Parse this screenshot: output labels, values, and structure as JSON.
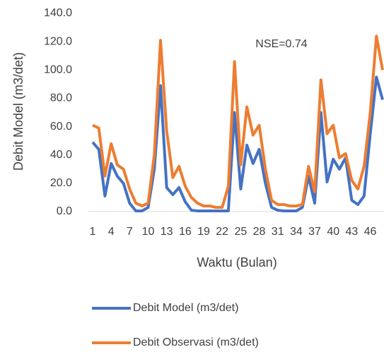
{
  "chart_data": {
    "type": "line",
    "annotation": "NSE=0.74",
    "x_label": "Waktu (Bulan)",
    "y_label": "Debit Model (m3/det)",
    "categories": [
      "1",
      null,
      null,
      "4",
      null,
      null,
      "7",
      null,
      null,
      "10",
      null,
      null,
      "13",
      null,
      null,
      "16",
      null,
      null,
      "19",
      null,
      null,
      "22",
      null,
      null,
      "25",
      null,
      null,
      "28",
      null,
      null,
      "31",
      null,
      null,
      "34",
      null,
      null,
      "37",
      null,
      null,
      "40",
      null,
      null,
      "43",
      null,
      null,
      "46",
      null,
      null
    ],
    "series": [
      {
        "name": "Debit Model (m3/det)",
        "color": "#4472c4",
        "values": [
          49,
          44,
          11,
          34,
          25,
          20,
          6,
          0.5,
          0.5,
          3,
          30,
          89,
          17,
          12,
          17,
          7,
          1,
          0.5,
          0.5,
          0.5,
          0.5,
          0.5,
          0.5,
          70,
          16,
          47,
          34,
          44,
          20,
          3,
          1,
          0.5,
          0.5,
          0.5,
          3,
          25,
          6,
          70,
          21,
          37,
          30,
          38,
          8,
          5,
          11,
          55,
          95,
          79
        ]
      },
      {
        "name": "Debit Observasi (m3/det)",
        "color": "#ed7d31",
        "values": [
          61,
          59,
          25,
          48,
          33,
          30,
          16,
          6,
          4,
          6,
          40,
          121,
          57,
          24,
          32,
          18,
          10,
          6,
          4,
          4,
          3,
          3,
          18,
          106,
          33,
          74,
          54,
          61,
          30,
          8,
          5,
          5,
          4,
          4,
          5,
          32,
          14,
          93,
          55,
          61,
          38,
          41,
          22,
          16,
          32,
          70,
          124,
          100
        ]
      }
    ],
    "ylim": [
      0,
      140
    ],
    "yticks": [
      {
        "value": 0,
        "label": "0.0"
      },
      {
        "value": 20,
        "label": "20.0"
      },
      {
        "value": 40,
        "label": "40.0"
      },
      {
        "value": 60,
        "label": "60.0"
      },
      {
        "value": 80,
        "label": "80.0"
      },
      {
        "value": 100,
        "label": "100.0"
      },
      {
        "value": 120,
        "label": "120.0"
      },
      {
        "value": 140,
        "label": "140.0"
      }
    ],
    "grid": false,
    "legend": "bottom"
  }
}
